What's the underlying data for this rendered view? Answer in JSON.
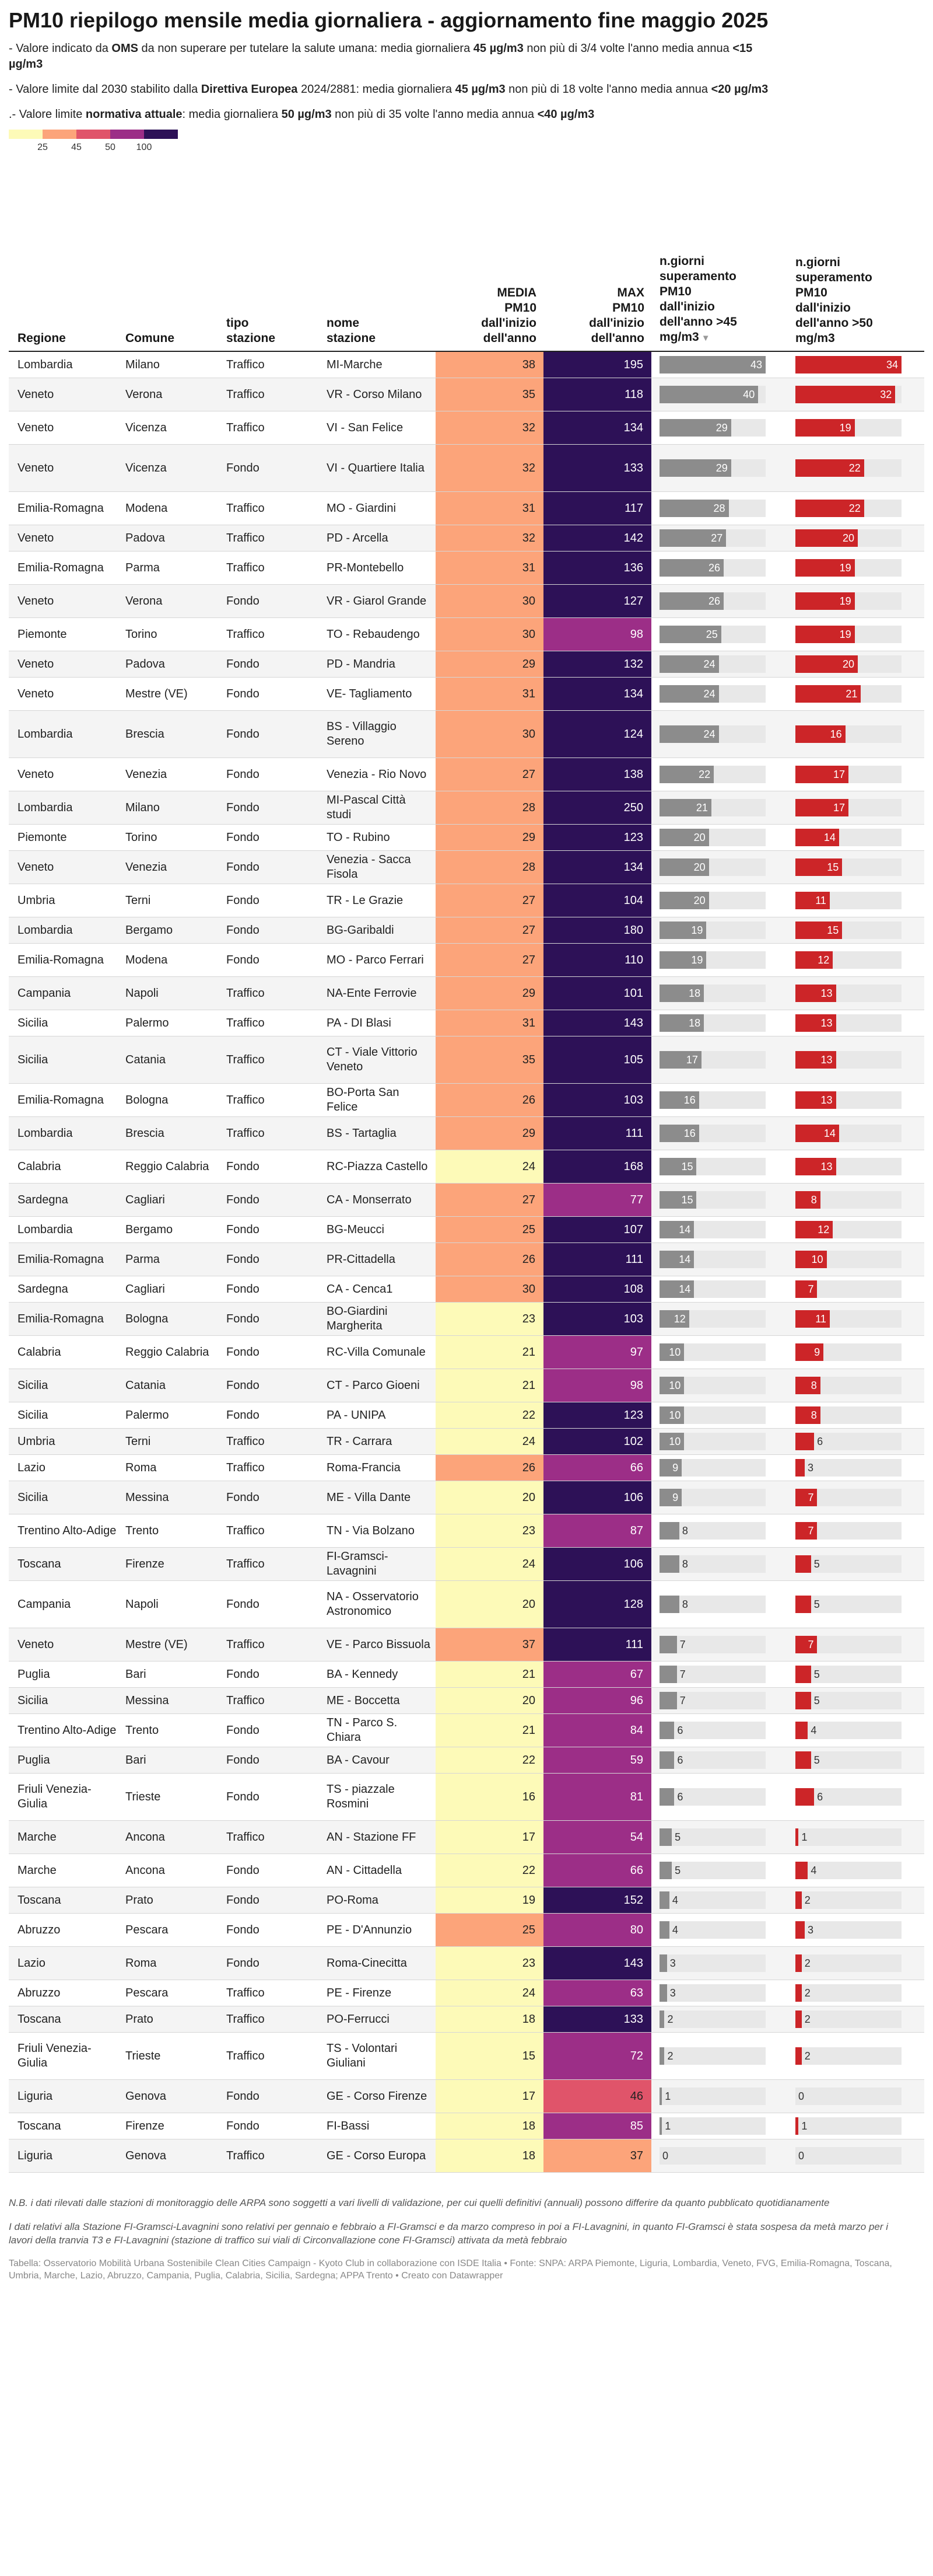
{
  "title": "PM10 riepilogo mensile media giornaliera - aggiornamento fine maggio 2025",
  "intro": [
    {
      "parts": [
        [
          "- Valore indicato da ",
          false
        ],
        [
          "OMS",
          true
        ],
        [
          " da non superare per tutelare la salute umana: media giornaliera ",
          false
        ],
        [
          "45 µg/m3",
          true
        ],
        [
          " non più di 3/4 volte l'anno media annua ",
          false
        ],
        [
          "<15 µg/m3",
          true
        ]
      ]
    },
    {
      "parts": [
        [
          "- Valore limite dal 2030 stabilito dalla ",
          false
        ],
        [
          "Direttiva Europea",
          true
        ],
        [
          " 2024/2881: media giornaliera ",
          false
        ],
        [
          "45 µg/m3",
          true
        ],
        [
          " non più di 18 volte l'anno media annua ",
          false
        ],
        [
          "<20 µg/m3",
          true
        ]
      ]
    },
    {
      "parts": [
        [
          ".- Valore limite ",
          false
        ],
        [
          "normativa attuale",
          true
        ],
        [
          ": media giornaliera ",
          false
        ],
        [
          "50 µg/m3",
          true
        ],
        [
          " non più di 35 volte l'anno media annua ",
          false
        ],
        [
          "<40 µg/m3",
          true
        ]
      ]
    }
  ],
  "legend": {
    "labels": [
      "25",
      "45",
      "50",
      "100"
    ],
    "colors": [
      "#fdfab8",
      "#fca47a",
      "#e0546a",
      "#9c2e87",
      "#2d1157"
    ]
  },
  "colors": {
    "gray_bar": "#8c8c8c",
    "red_bar": "#cc2528",
    "track": "#e8e8e8"
  },
  "headers": {
    "regione": "Regione",
    "comune": "Comune",
    "tipo": "tipo\nstazione",
    "nome": "nome\nstazione",
    "media": "MEDIA\nPM10\ndall'inizio\ndell'anno",
    "max": "MAX\nPM10\ndall'inizio\ndell'anno",
    "sup45": "n.giorni\nsuperamento\nPM10\ndall'inizio\ndell'anno >45\nmg/m3",
    "sup50": "n.giorni\nsuperamento\nPM10\ndall'inizio\ndell'anno >50\nmg/m3"
  },
  "rows": [
    {
      "regione": "Lombardia",
      "comune": "Milano",
      "tipo": "Traffico",
      "nome": "MI-Marche",
      "media": 38,
      "max": 195,
      "sup45": 43,
      "sup50": 34
    },
    {
      "regione": "Veneto",
      "comune": "Verona",
      "tipo": "Traffico",
      "nome": "VR - Corso Milano",
      "media": 35,
      "max": 118,
      "sup45": 40,
      "sup50": 32
    },
    {
      "regione": "Veneto",
      "comune": "Vicenza",
      "tipo": "Traffico",
      "nome": "VI - San Felice",
      "media": 32,
      "max": 134,
      "sup45": 29,
      "sup50": 19
    },
    {
      "regione": "Veneto",
      "comune": "Vicenza",
      "tipo": "Fondo",
      "nome": "VI - Quartiere Italia",
      "media": 32,
      "max": 133,
      "sup45": 29,
      "sup50": 22
    },
    {
      "regione": "Emilia-Romagna",
      "comune": "Modena",
      "tipo": "Traffico",
      "nome": "MO - Giardini",
      "media": 31,
      "max": 117,
      "sup45": 28,
      "sup50": 22
    },
    {
      "regione": "Veneto",
      "comune": "Padova",
      "tipo": "Traffico",
      "nome": "PD - Arcella",
      "media": 32,
      "max": 142,
      "sup45": 27,
      "sup50": 20
    },
    {
      "regione": "Emilia-Romagna",
      "comune": "Parma",
      "tipo": "Traffico",
      "nome": "PR-Montebello",
      "media": 31,
      "max": 136,
      "sup45": 26,
      "sup50": 19
    },
    {
      "regione": "Veneto",
      "comune": "Verona",
      "tipo": "Fondo",
      "nome": "VR - Giarol Grande",
      "media": 30,
      "max": 127,
      "sup45": 26,
      "sup50": 19
    },
    {
      "regione": "Piemonte",
      "comune": "Torino",
      "tipo": "Traffico",
      "nome": "TO - Rebaudengo",
      "media": 30,
      "max": 98,
      "sup45": 25,
      "sup50": 19
    },
    {
      "regione": "Veneto",
      "comune": "Padova",
      "tipo": "Fondo",
      "nome": "PD - Mandria",
      "media": 29,
      "max": 132,
      "sup45": 24,
      "sup50": 20
    },
    {
      "regione": "Veneto",
      "comune": "Mestre (VE)",
      "tipo": "Fondo",
      "nome": "VE- Tagliamento",
      "media": 31,
      "max": 134,
      "sup45": 24,
      "sup50": 21
    },
    {
      "regione": "Lombardia",
      "comune": "Brescia",
      "tipo": "Fondo",
      "nome": "BS - Villaggio Sereno",
      "media": 30,
      "max": 124,
      "sup45": 24,
      "sup50": 16
    },
    {
      "regione": "Veneto",
      "comune": "Venezia",
      "tipo": "Fondo",
      "nome": "Venezia - Rio Novo",
      "media": 27,
      "max": 138,
      "sup45": 22,
      "sup50": 17
    },
    {
      "regione": "Lombardia",
      "comune": "Milano",
      "tipo": "Fondo",
      "nome": "MI-Pascal Città studi",
      "media": 28,
      "max": 250,
      "sup45": 21,
      "sup50": 17
    },
    {
      "regione": "Piemonte",
      "comune": "Torino",
      "tipo": "Fondo",
      "nome": "TO - Rubino",
      "media": 29,
      "max": 123,
      "sup45": 20,
      "sup50": 14
    },
    {
      "regione": "Veneto",
      "comune": "Venezia",
      "tipo": "Fondo",
      "nome": "Venezia - Sacca Fisola",
      "media": 28,
      "max": 134,
      "sup45": 20,
      "sup50": 15
    },
    {
      "regione": "Umbria",
      "comune": "Terni",
      "tipo": "Fondo",
      "nome": "TR - Le Grazie",
      "media": 27,
      "max": 104,
      "sup45": 20,
      "sup50": 11
    },
    {
      "regione": "Lombardia",
      "comune": "Bergamo",
      "tipo": "Fondo",
      "nome": "BG-Garibaldi",
      "media": 27,
      "max": 180,
      "sup45": 19,
      "sup50": 15
    },
    {
      "regione": "Emilia-Romagna",
      "comune": "Modena",
      "tipo": "Fondo",
      "nome": "MO - Parco Ferrari",
      "media": 27,
      "max": 110,
      "sup45": 19,
      "sup50": 12
    },
    {
      "regione": "Campania",
      "comune": "Napoli",
      "tipo": "Traffico",
      "nome": "NA-Ente Ferrovie",
      "media": 29,
      "max": 101,
      "sup45": 18,
      "sup50": 13
    },
    {
      "regione": "Sicilia",
      "comune": "Palermo",
      "tipo": "Traffico",
      "nome": "PA - DI Blasi",
      "media": 31,
      "max": 143,
      "sup45": 18,
      "sup50": 13
    },
    {
      "regione": "Sicilia",
      "comune": "Catania",
      "tipo": "Traffico",
      "nome": "CT - Viale Vittorio Veneto",
      "media": 35,
      "max": 105,
      "sup45": 17,
      "sup50": 13
    },
    {
      "regione": "Emilia-Romagna",
      "comune": "Bologna",
      "tipo": "Traffico",
      "nome": "BO-Porta San Felice",
      "media": 26,
      "max": 103,
      "sup45": 16,
      "sup50": 13
    },
    {
      "regione": "Lombardia",
      "comune": "Brescia",
      "tipo": "Traffico",
      "nome": "BS - Tartaglia",
      "media": 29,
      "max": 111,
      "sup45": 16,
      "sup50": 14
    },
    {
      "regione": "Calabria",
      "comune": "Reggio Calabria",
      "tipo": "Fondo",
      "nome": "RC-Piazza Castello",
      "media": 24,
      "max": 168,
      "sup45": 15,
      "sup50": 13
    },
    {
      "regione": "Sardegna",
      "comune": "Cagliari",
      "tipo": "Fondo",
      "nome": "CA - Monserrato",
      "media": 27,
      "max": 77,
      "sup45": 15,
      "sup50": 8
    },
    {
      "regione": "Lombardia",
      "comune": "Bergamo",
      "tipo": "Fondo",
      "nome": "BG-Meucci",
      "media": 25,
      "max": 107,
      "sup45": 14,
      "sup50": 12
    },
    {
      "regione": "Emilia-Romagna",
      "comune": "Parma",
      "tipo": "Fondo",
      "nome": "PR-Cittadella",
      "media": 26,
      "max": 111,
      "sup45": 14,
      "sup50": 10
    },
    {
      "regione": "Sardegna",
      "comune": "Cagliari",
      "tipo": "Fondo",
      "nome": "CA - Cenca1",
      "media": 30,
      "max": 108,
      "sup45": 14,
      "sup50": 7
    },
    {
      "regione": "Emilia-Romagna",
      "comune": "Bologna",
      "tipo": "Fondo",
      "nome": "BO-Giardini Margherita",
      "media": 23,
      "max": 103,
      "sup45": 12,
      "sup50": 11
    },
    {
      "regione": "Calabria",
      "comune": "Reggio Calabria",
      "tipo": "Fondo",
      "nome": "RC-Villa Comunale",
      "media": 21,
      "max": 97,
      "sup45": 10,
      "sup50": 9
    },
    {
      "regione": "Sicilia",
      "comune": "Catania",
      "tipo": "Fondo",
      "nome": "CT - Parco Gioeni",
      "media": 21,
      "max": 98,
      "sup45": 10,
      "sup50": 8
    },
    {
      "regione": "Sicilia",
      "comune": "Palermo",
      "tipo": "Fondo",
      "nome": "PA - UNIPA",
      "media": 22,
      "max": 123,
      "sup45": 10,
      "sup50": 8
    },
    {
      "regione": "Umbria",
      "comune": "Terni",
      "tipo": "Traffico",
      "nome": "TR - Carrara",
      "media": 24,
      "max": 102,
      "sup45": 10,
      "sup50": 6
    },
    {
      "regione": "Lazio",
      "comune": "Roma",
      "tipo": "Traffico",
      "nome": "Roma-Francia",
      "media": 26,
      "max": 66,
      "sup45": 9,
      "sup50": 3
    },
    {
      "regione": "Sicilia",
      "comune": "Messina",
      "tipo": "Fondo",
      "nome": "ME - Villa Dante",
      "media": 20,
      "max": 106,
      "sup45": 9,
      "sup50": 7
    },
    {
      "regione": "Trentino Alto-Adige",
      "comune": "Trento",
      "tipo": "Traffico",
      "nome": "TN - Via Bolzano",
      "media": 23,
      "max": 87,
      "sup45": 8,
      "sup50": 7
    },
    {
      "regione": "Toscana",
      "comune": "Firenze",
      "tipo": "Traffico",
      "nome": "FI-Gramsci-Lavagnini",
      "media": 24,
      "max": 106,
      "sup45": 8,
      "sup50": 5
    },
    {
      "regione": "Campania",
      "comune": "Napoli",
      "tipo": "Fondo",
      "nome": "NA - Osservatorio Astronomico",
      "media": 20,
      "max": 128,
      "sup45": 8,
      "sup50": 5
    },
    {
      "regione": "Veneto",
      "comune": "Mestre (VE)",
      "tipo": "Traffico",
      "nome": "VE - Parco Bissuola",
      "media": 37,
      "max": 111,
      "sup45": 7,
      "sup50": 7
    },
    {
      "regione": "Puglia",
      "comune": "Bari",
      "tipo": "Fondo",
      "nome": "BA - Kennedy",
      "media": 21,
      "max": 67,
      "sup45": 7,
      "sup50": 5
    },
    {
      "regione": "Sicilia",
      "comune": "Messina",
      "tipo": "Traffico",
      "nome": "ME - Boccetta",
      "media": 20,
      "max": 96,
      "sup45": 7,
      "sup50": 5
    },
    {
      "regione": "Trentino Alto-Adige",
      "comune": "Trento",
      "tipo": "Fondo",
      "nome": "TN - Parco S. Chiara",
      "media": 21,
      "max": 84,
      "sup45": 6,
      "sup50": 4
    },
    {
      "regione": "Puglia",
      "comune": "Bari",
      "tipo": "Fondo",
      "nome": "BA - Cavour",
      "media": 22,
      "max": 59,
      "sup45": 6,
      "sup50": 5
    },
    {
      "regione": "Friuli Venezia-Giulia",
      "comune": "Trieste",
      "tipo": "Fondo",
      "nome": "TS - piazzale Rosmini",
      "media": 16,
      "max": 81,
      "sup45": 6,
      "sup50": 6
    },
    {
      "regione": "Marche",
      "comune": "Ancona",
      "tipo": "Traffico",
      "nome": "AN - Stazione FF",
      "media": 17,
      "max": 54,
      "sup45": 5,
      "sup50": 1
    },
    {
      "regione": "Marche",
      "comune": "Ancona",
      "tipo": "Fondo",
      "nome": "AN - Cittadella",
      "media": 22,
      "max": 66,
      "sup45": 5,
      "sup50": 4
    },
    {
      "regione": "Toscana",
      "comune": "Prato",
      "tipo": "Fondo",
      "nome": "PO-Roma",
      "media": 19,
      "max": 152,
      "sup45": 4,
      "sup50": 2
    },
    {
      "regione": "Abruzzo",
      "comune": "Pescara",
      "tipo": "Fondo",
      "nome": "PE - D'Annunzio",
      "media": 25,
      "max": 80,
      "sup45": 4,
      "sup50": 3
    },
    {
      "regione": "Lazio",
      "comune": "Roma",
      "tipo": "Fondo",
      "nome": "Roma-Cinecitta",
      "media": 23,
      "max": 143,
      "sup45": 3,
      "sup50": 2
    },
    {
      "regione": "Abruzzo",
      "comune": "Pescara",
      "tipo": "Traffico",
      "nome": "PE - Firenze",
      "media": 24,
      "max": 63,
      "sup45": 3,
      "sup50": 2
    },
    {
      "regione": "Toscana",
      "comune": "Prato",
      "tipo": "Traffico",
      "nome": "PO-Ferrucci",
      "media": 18,
      "max": 133,
      "sup45": 2,
      "sup50": 2
    },
    {
      "regione": "Friuli Venezia-Giulia",
      "comune": "Trieste",
      "tipo": "Traffico",
      "nome": "TS - Volontari Giuliani",
      "media": 15,
      "max": 72,
      "sup45": 2,
      "sup50": 2
    },
    {
      "regione": "Liguria",
      "comune": "Genova",
      "tipo": "Fondo",
      "nome": "GE - Corso Firenze",
      "media": 17,
      "max": 46,
      "sup45": 1,
      "sup50": 0
    },
    {
      "regione": "Toscana",
      "comune": "Firenze",
      "tipo": "Fondo",
      "nome": "FI-Bassi",
      "media": 18,
      "max": 85,
      "sup45": 1,
      "sup50": 1
    },
    {
      "regione": "Liguria",
      "comune": "Genova",
      "tipo": "Traffico",
      "nome": "GE - Corso Europa",
      "media": 18,
      "max": 37,
      "sup45": 0,
      "sup50": 0
    }
  ],
  "notes": [
    "N.B. i dati rilevati dalle stazioni di monitoraggio delle ARPA sono soggetti a vari livelli di validazione, per cui quelli definitivi (annuali) possono differire da quanto pubblicato quotidianamente",
    "I dati relativi alla Stazione FI-Gramsci-Lavagnini sono relativi per gennaio e febbraio a FI-Gramsci e da marzo compreso in poi a FI-Lavagnini, in quanto FI-Gramsci è stata sospesa da metà marzo per i lavori della tranvia T3 e FI-Lavagnini (stazione di traffico sui viali di Circonvallazione cone FI-Gramsci) attivata da metà febbraio"
  ],
  "source": "Tabella: Osservatorio Mobilità Urbana Sostenibile Clean Cities Campaign - Kyoto Club in collaborazione con ISDE Italia • Fonte: SNPA: ARPA Piemonte, Liguria, Lombardia, Veneto, FVG, Emilia-Romagna, Toscana, Umbria, Marche, Lazio, Abruzzo, Campania, Puglia, Calabria, Sicilia, Sardegna; APPA Trento • Creato con Datawrapper",
  "chart_data": {
    "type": "table",
    "title": "PM10 riepilogo mensile media giornaliera - aggiornamento fine maggio 2025",
    "columns": [
      "Regione",
      "Comune",
      "tipo stazione",
      "nome stazione",
      "MEDIA PM10 dall'inizio dell'anno",
      "MAX PM10 dall'inizio dell'anno",
      "n.giorni superamento PM10 dall'inizio dell'anno >45 mg/m3",
      "n.giorni superamento PM10 dall'inizio dell'anno >50 mg/m3"
    ],
    "color_scale_breaks": [
      25,
      45,
      50,
      100
    ],
    "sort": {
      "column": "n.giorni superamento PM10 dall'inizio dell'anno >45 mg/m3",
      "order": "descending"
    }
  }
}
